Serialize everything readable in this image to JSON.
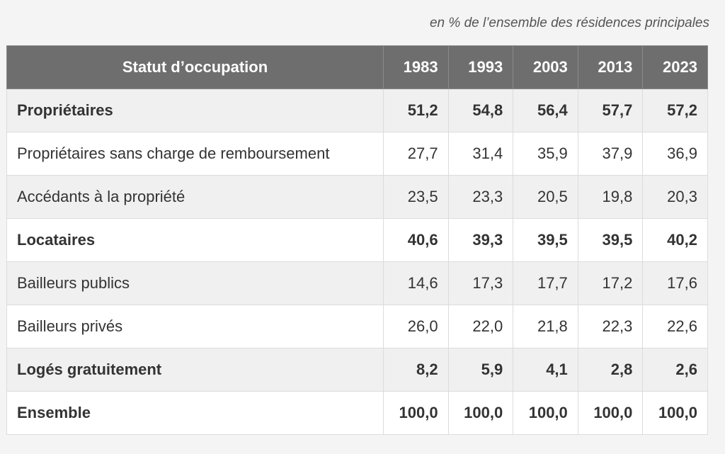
{
  "note": "en % de l’ensemble des résidences principales",
  "table": {
    "header": [
      "Statut d’occupation",
      "1983",
      "1993",
      "2003",
      "2013",
      "2023"
    ],
    "rows": [
      {
        "label": "Propriétaires",
        "bold": true,
        "values": [
          "51,2",
          "54,8",
          "56,4",
          "57,7",
          "57,2"
        ]
      },
      {
        "label": "Propriétaires sans charge de remboursement",
        "bold": false,
        "values": [
          "27,7",
          "31,4",
          "35,9",
          "37,9",
          "36,9"
        ]
      },
      {
        "label": "Accédants à la propriété",
        "bold": false,
        "values": [
          "23,5",
          "23,3",
          "20,5",
          "19,8",
          "20,3"
        ]
      },
      {
        "label": "Locataires",
        "bold": true,
        "values": [
          "40,6",
          "39,3",
          "39,5",
          "39,5",
          "40,2"
        ]
      },
      {
        "label": "Bailleurs publics",
        "bold": false,
        "values": [
          "14,6",
          "17,3",
          "17,7",
          "17,2",
          "17,6"
        ]
      },
      {
        "label": "Bailleurs privés",
        "bold": false,
        "values": [
          "26,0",
          "22,0",
          "21,8",
          "22,3",
          "22,6"
        ]
      },
      {
        "label": "Logés gratuitement",
        "bold": true,
        "values": [
          "8,2",
          "5,9",
          "4,1",
          "2,8",
          "2,6"
        ]
      },
      {
        "label": "Ensemble",
        "bold": true,
        "values": [
          "100,0",
          "100,0",
          "100,0",
          "100,0",
          "100,0"
        ]
      }
    ]
  }
}
